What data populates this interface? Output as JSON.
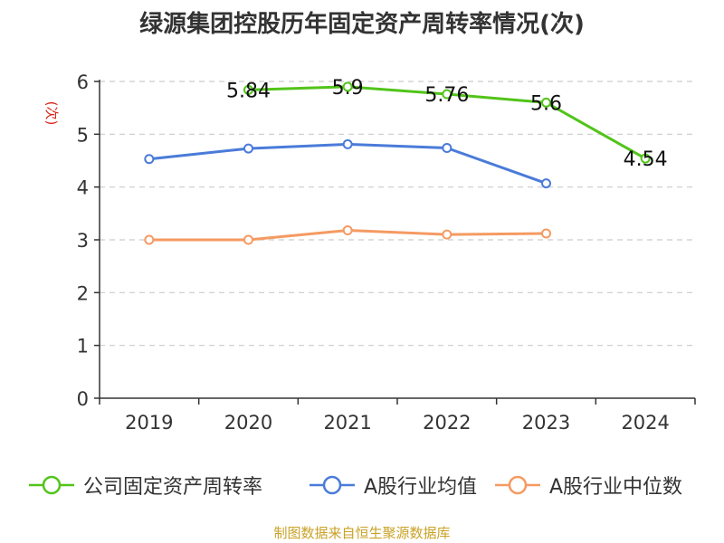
{
  "title": "绿源集团控股历年固定资产周转率情况(次)",
  "source": "制图数据来自恒生聚源数据库",
  "chart_data": {
    "type": "line",
    "ylabel": "(次)",
    "ylim": [
      0,
      6
    ],
    "yticks": [
      "0",
      "1",
      "2",
      "3",
      "4",
      "5",
      "6"
    ],
    "categories": [
      "2019",
      "2020",
      "2021",
      "2022",
      "2023",
      "2024"
    ],
    "grid": true,
    "legend_position": "bottom",
    "series": [
      {
        "name": "公司固定资产周转率",
        "color": "#52c41a",
        "values": [
          null,
          5.84,
          5.9,
          5.76,
          5.6,
          4.54
        ],
        "labels": [
          "",
          "5.84",
          "5.9",
          "5.76",
          "5.6",
          "4.54"
        ]
      },
      {
        "name": "A股行业均值",
        "color": "#4a7bd9",
        "values": [
          4.53,
          4.73,
          4.81,
          4.74,
          4.07,
          null
        ]
      },
      {
        "name": "A股行业中位数",
        "color": "#f59a62",
        "values": [
          3.0,
          3.0,
          3.18,
          3.1,
          3.12,
          null
        ]
      }
    ]
  }
}
